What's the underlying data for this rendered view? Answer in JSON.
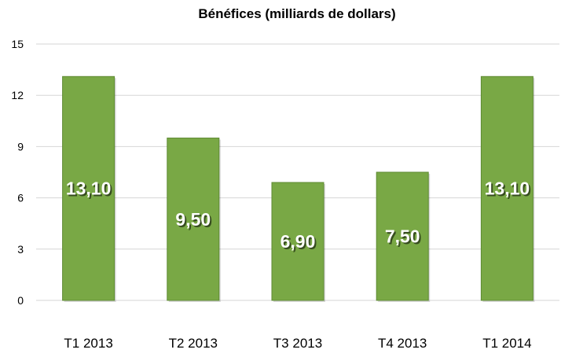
{
  "chart_data": {
    "type": "bar",
    "title": "Bénéfices (milliards de dollars)",
    "xlabel": "",
    "ylabel": "",
    "categories": [
      "T1 2013",
      "T2 2013",
      "T3 2013",
      "T4 2013",
      "T1 2014"
    ],
    "values": [
      13.1,
      9.5,
      6.9,
      7.5,
      13.1
    ],
    "data_labels": [
      "13,10",
      "9,50",
      "6,90",
      "7,50",
      "13,10"
    ],
    "ylim": [
      0,
      15
    ],
    "yticks": [
      0,
      3,
      6,
      9,
      12,
      15
    ],
    "grid": true,
    "legend": "none",
    "colors": {
      "bar": "#79a845",
      "bar_edge": "#5e8a33",
      "grid": "#d6d6d6"
    }
  }
}
